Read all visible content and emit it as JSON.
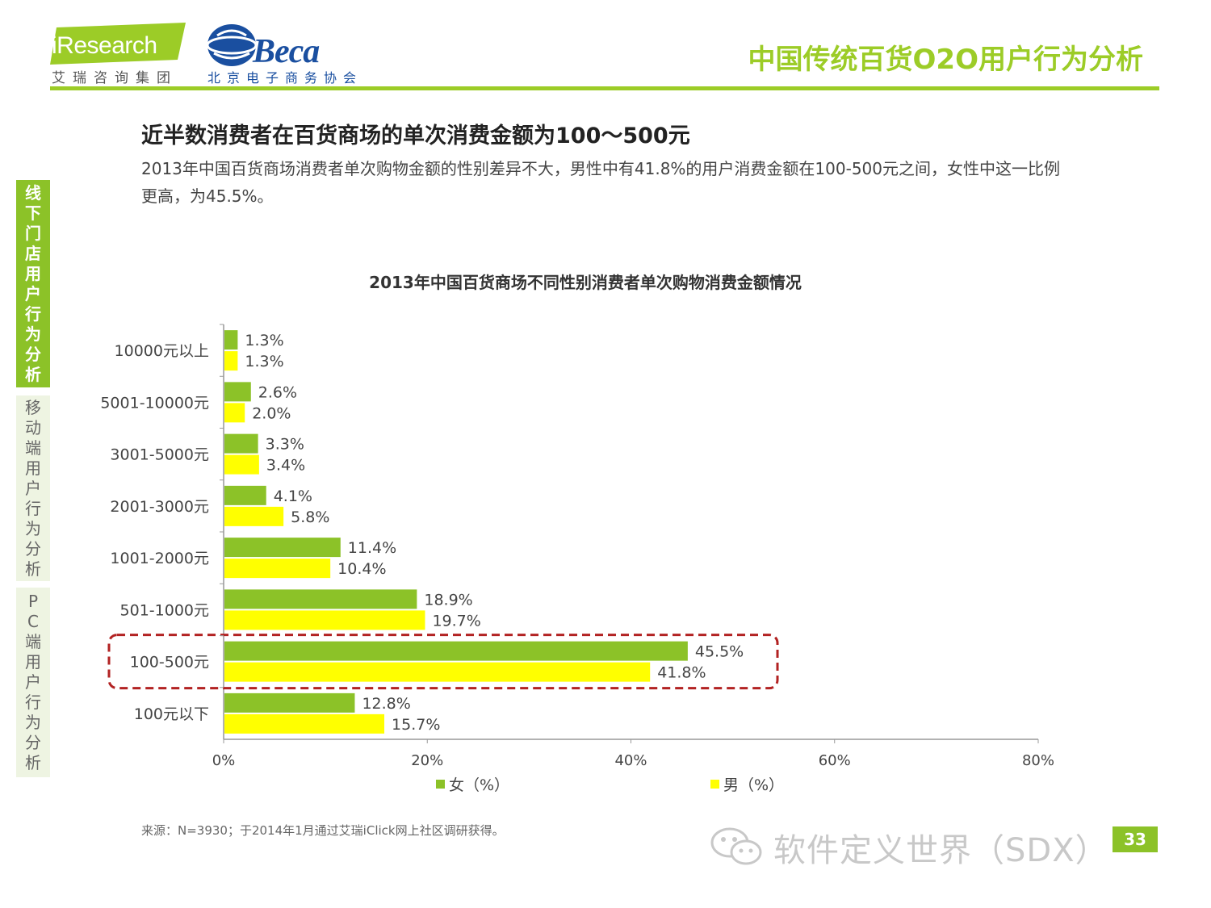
{
  "header": {
    "logo_iresearch": "iResearch",
    "logo_iresearch_sub": "艾瑞咨询集团",
    "logo_beca": "Beca",
    "logo_beca_sub": "北京电子商务协会",
    "title": "中国传统百货O2O用户行为分析",
    "accent_color": "#9ccc27"
  },
  "nav": {
    "offline": "线下门店用户行为分析",
    "mobile": "移动端用户行为分析",
    "pc": "PC端用户行为分析"
  },
  "headline": "近半数消费者在百货商场的单次消费金额为100～500元",
  "description": "2013年中国百货商场消费者单次购物金额的性别差异不大，男性中有41.8%的用户消费金额在100-500元之间，女性中这一比例更高，为45.5%。",
  "chart_data": {
    "type": "bar",
    "orientation": "horizontal",
    "title": "2013年中国百货商场不同性别消费者单次购物消费金额情况",
    "categories": [
      "10000元以上",
      "5001-10000元",
      "3001-5000元",
      "2001-3000元",
      "1001-2000元",
      "501-1000元",
      "100-500元",
      "100元以下"
    ],
    "series": [
      {
        "name": "女（%）",
        "color": "#8cc228",
        "values": [
          1.3,
          2.6,
          3.3,
          4.1,
          11.4,
          18.9,
          45.5,
          12.8
        ],
        "labels": [
          "1.3%",
          "2.6%",
          "3.3%",
          "4.1%",
          "11.4%",
          "18.9%",
          "45.5%",
          "12.8%"
        ]
      },
      {
        "name": "男（%）",
        "color": "#ffff00",
        "values": [
          1.3,
          2.0,
          3.4,
          5.8,
          10.4,
          19.7,
          41.8,
          15.7
        ],
        "labels": [
          "1.3%",
          "2.0%",
          "3.4%",
          "5.8%",
          "10.4%",
          "19.7%",
          "41.8%",
          "15.7%"
        ]
      }
    ],
    "xlim": [
      0,
      80
    ],
    "xticks": [
      0,
      20,
      40,
      60,
      80
    ],
    "xtick_labels": [
      "0%",
      "20%",
      "40%",
      "60%",
      "80%"
    ],
    "highlighted_category": "100-500元",
    "grid": false,
    "legend_position": "bottom"
  },
  "source": "来源：N=3930；于2014年1月通过艾瑞iClick网上社区调研获得。",
  "watermark": "软件定义世界（SDX）",
  "page_number": "33"
}
